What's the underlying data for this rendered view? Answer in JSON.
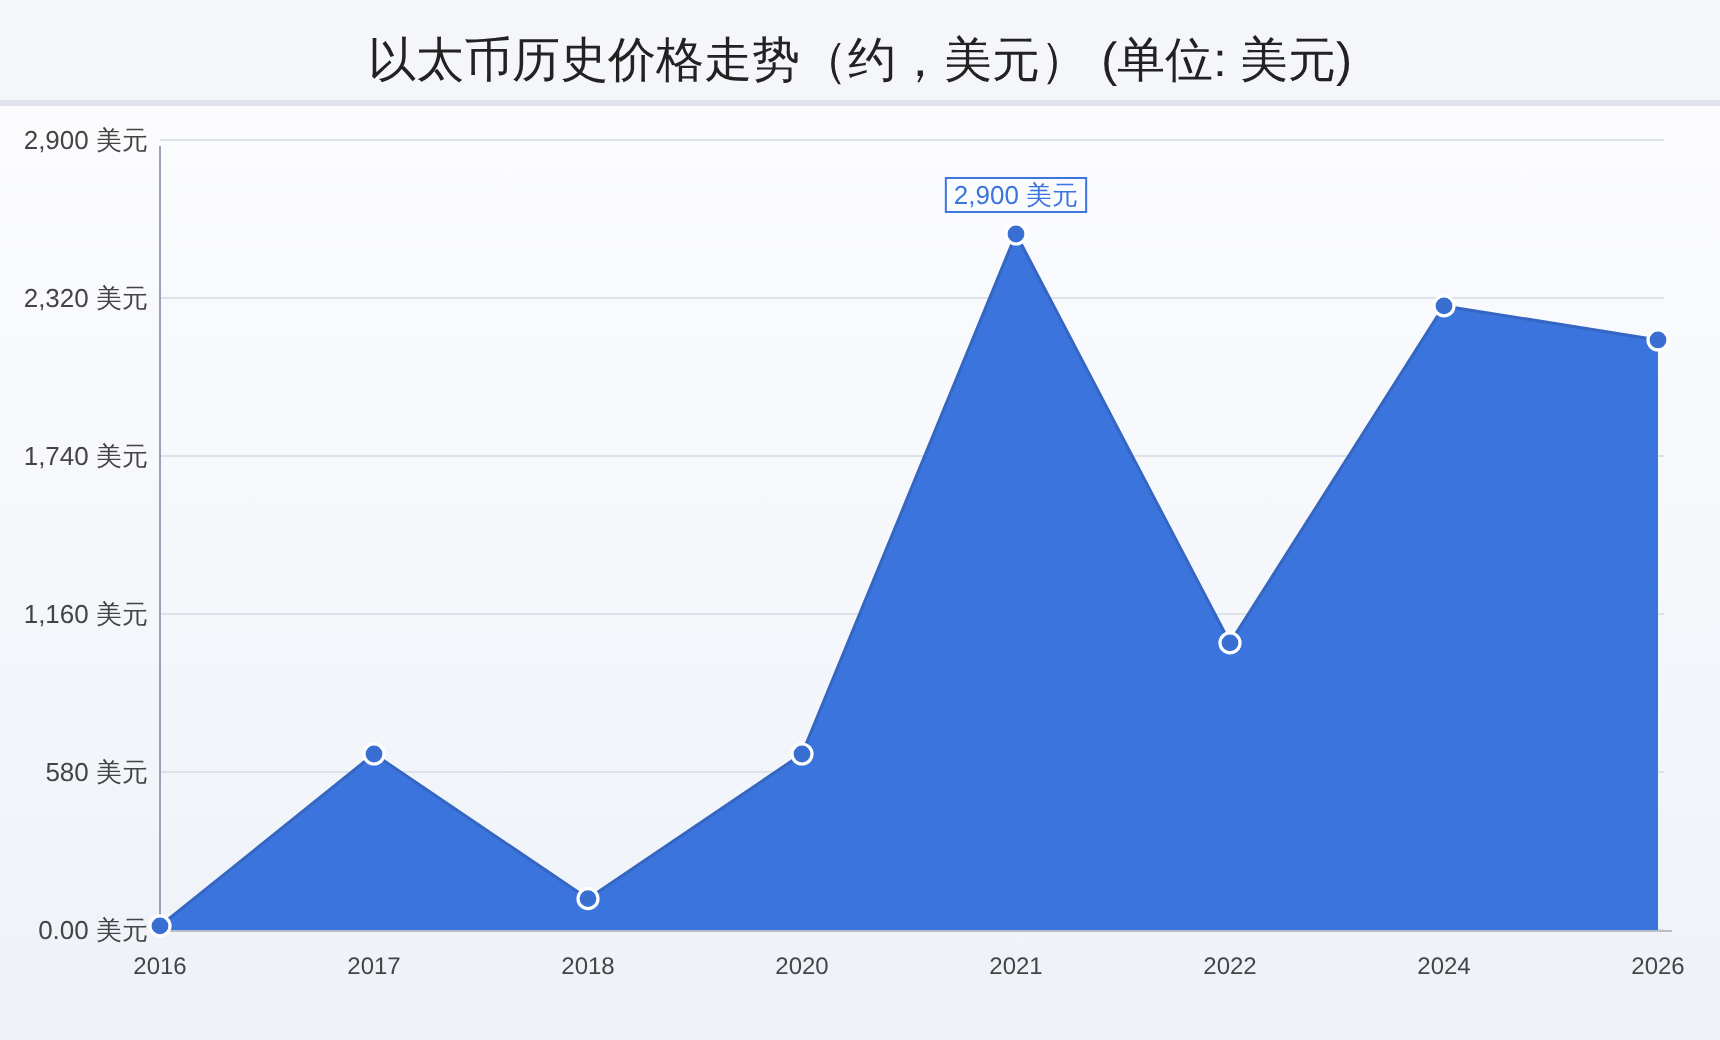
{
  "chart_data": {
    "type": "area",
    "title": "以太币历史价格走势（约，美元） (单位: 美元)",
    "categories": [
      "2016",
      "2017",
      "2018",
      "2020",
      "2021",
      "2022",
      "2024",
      "2026"
    ],
    "series": [
      {
        "color": "#3b74dc",
        "values": [
          15,
          646,
          115,
          646,
          2555,
          1054,
          2291,
          2166
        ]
      }
    ],
    "ylim": [
      0,
      2900
    ],
    "yticks": [
      {
        "value": 0,
        "label": "0.00 美元"
      },
      {
        "value": 580,
        "label": "580 美元"
      },
      {
        "value": 1160,
        "label": "1,160 美元"
      },
      {
        "value": 1740,
        "label": "1,740 美元"
      },
      {
        "value": 2320,
        "label": "2,320 美元"
      },
      {
        "value": 2900,
        "label": "2,900 美元"
      }
    ],
    "grid": "y",
    "marker": "circle",
    "annotations": [
      "2,900 美元"
    ]
  }
}
